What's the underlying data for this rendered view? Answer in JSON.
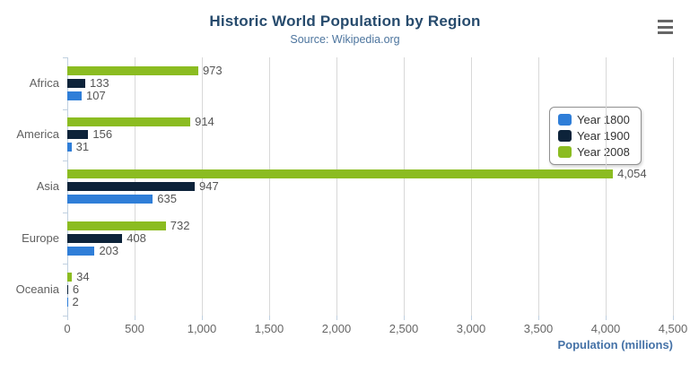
{
  "chart_data": {
    "type": "bar",
    "title": "Historic World Population by Region",
    "subtitle": "Source: Wikipedia.org",
    "categories": [
      "Africa",
      "America",
      "Asia",
      "Europe",
      "Oceania"
    ],
    "series": [
      {
        "name": "Year 1800",
        "color": "#2f7ed8",
        "values": [
          107,
          31,
          635,
          203,
          2
        ],
        "labels": [
          "107",
          "31",
          "635",
          "203",
          "2"
        ]
      },
      {
        "name": "Year 1900",
        "color": "#0d233a",
        "values": [
          133,
          156,
          947,
          408,
          6
        ],
        "labels": [
          "133",
          "156",
          "947",
          "408",
          "6"
        ]
      },
      {
        "name": "Year 2008",
        "color": "#8bbc21",
        "values": [
          973,
          914,
          4054,
          732,
          34
        ],
        "labels": [
          "973",
          "914",
          "4,054",
          "732",
          "34"
        ]
      }
    ],
    "bar_order_top_to_bottom": [
      2,
      1,
      0
    ],
    "xlabel": "Population (millions)",
    "xlim": [
      0,
      4500
    ],
    "xticks": [
      0,
      500,
      1000,
      1500,
      2000,
      2500,
      3000,
      3500,
      4000,
      4500
    ],
    "xtick_labels": [
      "0",
      "500",
      "1,000",
      "1,500",
      "2,000",
      "2,500",
      "3,000",
      "3,500",
      "4,000",
      "4,500"
    ],
    "grid": true,
    "legend": {
      "position": "right",
      "items": [
        "Year 1800",
        "Year 1900",
        "Year 2008"
      ]
    }
  },
  "icons": {
    "context_menu": "hamburger-icon"
  },
  "colors": {
    "title": "#274b6d",
    "subtitle": "#4d759e",
    "axis_line": "#c0d0e0",
    "gridline": "#d8d8d8",
    "tick_label": "#666666",
    "category_label": "#606060",
    "data_label": "#555555",
    "axis_title": "#4572a7",
    "legend_border": "#909090",
    "legend_text": "#333333",
    "menu_icon": "#666666",
    "background": "#ffffff"
  }
}
